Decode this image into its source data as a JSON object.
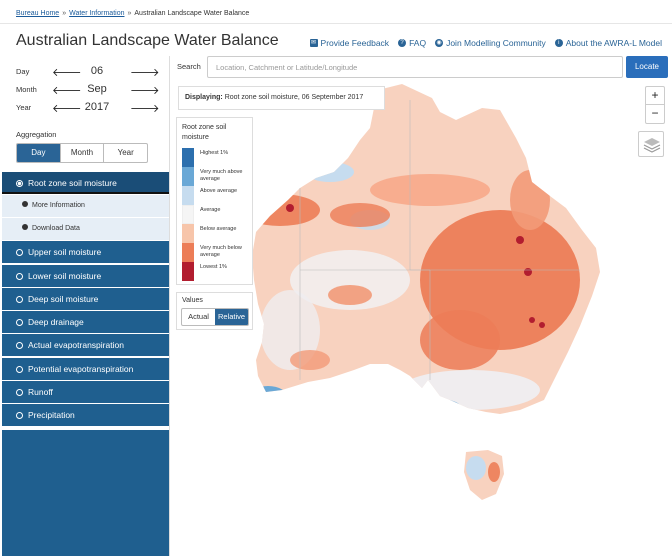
{
  "breadcrumb": [
    "Bureau Home",
    "Water Information",
    "Australian Landscape Water Balance"
  ],
  "page_title": "Australian Landscape Water Balance",
  "top_links": [
    {
      "label": "Provide Feedback",
      "icon": "envelope-icon"
    },
    {
      "label": "FAQ",
      "icon": "question-circle-icon"
    },
    {
      "label": "Join Modelling Community",
      "icon": "eye-icon"
    },
    {
      "label": "About the AWRA-L Model",
      "icon": "info-circle-icon"
    }
  ],
  "date": {
    "day_label": "Day",
    "day_value": "06",
    "month_label": "Month",
    "month_value": "Sep",
    "year_label": "Year",
    "year_value": "2017"
  },
  "aggregation": {
    "label": "Aggregation",
    "options": [
      "Day",
      "Month",
      "Year"
    ],
    "selected": "Day"
  },
  "layers": {
    "active": "Root zone soil moisture",
    "sub_items": [
      "More Information",
      "Download Data"
    ],
    "others": [
      "Upper soil moisture",
      "Lower soil moisture",
      "Deep soil moisture",
      "Deep drainage",
      "Actual evapotranspiration",
      "Potential evapotranspiration",
      "Runoff",
      "Precipitation"
    ]
  },
  "search": {
    "label": "Search",
    "placeholder": "Location, Catchment or Latitude/Longitude",
    "button": "Locate"
  },
  "displaying": {
    "label": "Displaying:",
    "value": "Root zone soil moisture, 06 September 2017"
  },
  "legend": {
    "title": "Root zone soil moisture",
    "items": [
      {
        "label": "Highest 1%",
        "color": "#2c6fae"
      },
      {
        "label": "Very much above average",
        "color": "#6aa8d6"
      },
      {
        "label": "Above average",
        "color": "#c6dcef"
      },
      {
        "label": "Average",
        "color": "#f5f5f5"
      },
      {
        "label": "Below average",
        "color": "#f7c5aa"
      },
      {
        "label": "Very much below average",
        "color": "#ec7d57"
      },
      {
        "label": "Lowest 1%",
        "color": "#b21d2f"
      }
    ]
  },
  "values_toggle": {
    "label": "Values",
    "options": [
      "Actual",
      "Relative"
    ],
    "selected": "Relative"
  },
  "zoom": {
    "in": "+",
    "out": "−"
  }
}
